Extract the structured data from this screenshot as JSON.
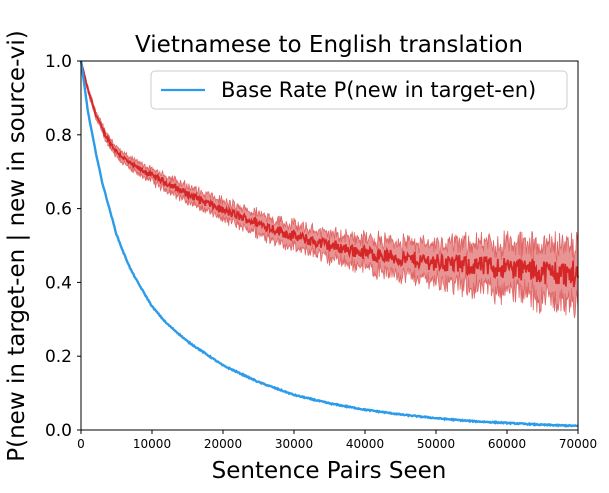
{
  "chart_data": {
    "type": "line",
    "title": "Vietnamese to English translation",
    "xlabel": "Sentence Pairs Seen",
    "ylabel": "P(new in target-en | new in source-vi)",
    "xlim": [
      0,
      70000
    ],
    "ylim": [
      0,
      1.0
    ],
    "xticks": [
      0,
      10000,
      20000,
      30000,
      40000,
      50000,
      60000,
      70000
    ],
    "xtick_labels": [
      "0",
      "10000",
      "20000",
      "30000",
      "40000",
      "50000",
      "60000",
      "70000"
    ],
    "yticks": [
      0,
      0.2,
      0.4,
      0.6,
      0.8,
      1.0
    ],
    "ytick_labels": [
      "0.0",
      "0.2",
      "0.4",
      "0.6",
      "0.8",
      "1.0"
    ],
    "grid": false,
    "legend": {
      "position": "top-right",
      "entries": [
        "Base Rate P(new in target-en)"
      ]
    },
    "series": [
      {
        "name": "Base Rate P(new in target-en)",
        "color": "#2c9be9",
        "x": [
          0,
          1000,
          2000,
          3000,
          4000,
          5000,
          6000,
          7000,
          8000,
          10000,
          12000,
          15000,
          20000,
          25000,
          30000,
          35000,
          40000,
          45000,
          50000,
          55000,
          60000,
          65000,
          70000
        ],
        "y": [
          1.0,
          0.86,
          0.76,
          0.67,
          0.6,
          0.53,
          0.48,
          0.435,
          0.4,
          0.335,
          0.29,
          0.24,
          0.175,
          0.13,
          0.095,
          0.072,
          0.055,
          0.042,
          0.032,
          0.024,
          0.019,
          0.014,
          0.011
        ]
      },
      {
        "color": "#d62728",
        "band_color": "#e06666",
        "x": [
          0,
          1000,
          2000,
          3000,
          4000,
          5000,
          7000,
          10000,
          12000,
          15000,
          20000,
          25000,
          30000,
          35000,
          40000,
          45000,
          50000,
          55000,
          60000,
          65000,
          70000
        ],
        "y": [
          1.0,
          0.92,
          0.86,
          0.815,
          0.78,
          0.755,
          0.72,
          0.69,
          0.67,
          0.64,
          0.595,
          0.56,
          0.525,
          0.5,
          0.48,
          0.465,
          0.455,
          0.445,
          0.44,
          0.43,
          0.42
        ],
        "spread": [
          0.005,
          0.01,
          0.012,
          0.014,
          0.015,
          0.016,
          0.018,
          0.02,
          0.022,
          0.025,
          0.028,
          0.032,
          0.036,
          0.04,
          0.045,
          0.052,
          0.06,
          0.068,
          0.075,
          0.085,
          0.095
        ]
      }
    ]
  }
}
